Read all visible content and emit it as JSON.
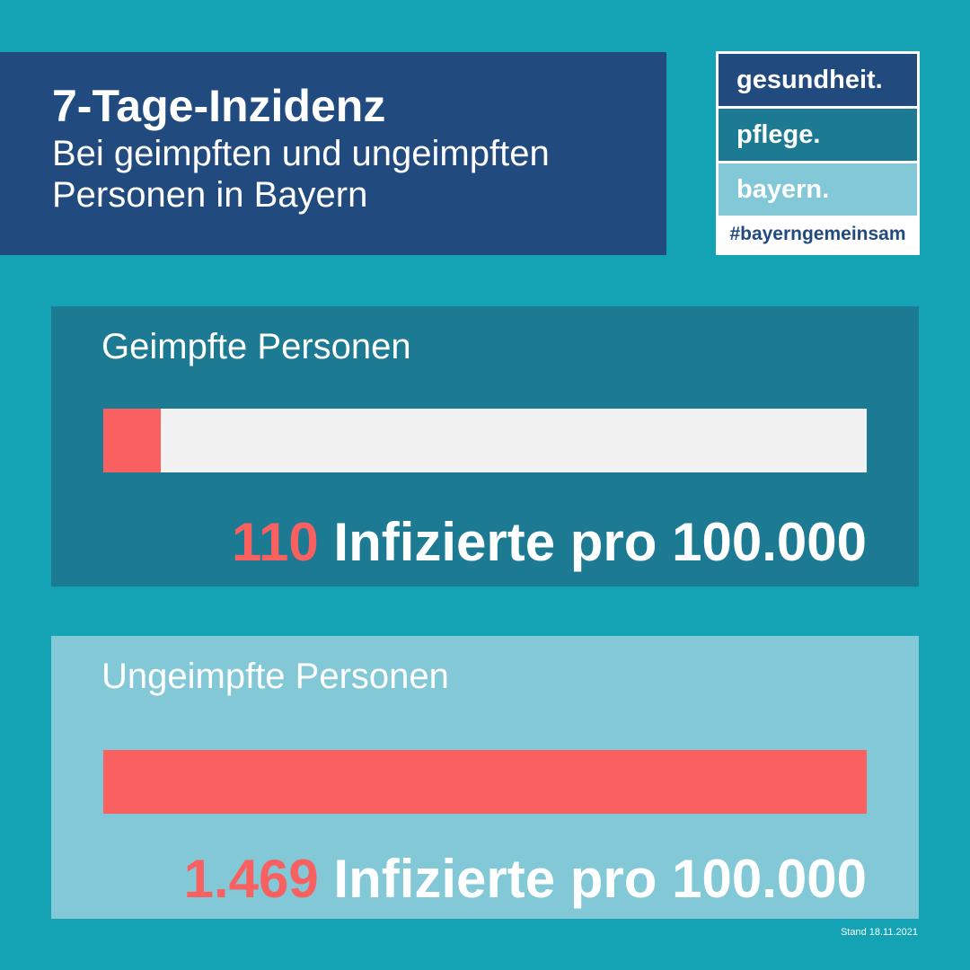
{
  "header": {
    "title": "7-Tage-Inzidenz",
    "subtitle_line1": "Bei geimpften und ungeimpften",
    "subtitle_line2": "Personen in Bayern"
  },
  "logo": {
    "line1": "gesundheit.",
    "line2": "pflege.",
    "line3": "bayern.",
    "hashtag": "#bayerngemeinsam"
  },
  "colors": {
    "background": "#14a3b5",
    "title_box": "#214a7f",
    "panel_vaccinated": "#1d7a93",
    "panel_unvaccinated": "#82c8d6",
    "bar_fill": "#f96060",
    "bar_track": "#f1f1f1"
  },
  "chart_data": {
    "type": "bar",
    "orientation": "horizontal",
    "categories": [
      "Geimpfte Personen",
      "Ungeimpfte Personen"
    ],
    "values": [
      110,
      1469
    ],
    "display_values": [
      "110",
      "1.469"
    ],
    "unit": "Infizierte pro 100.000",
    "xlim": [
      0,
      1469
    ]
  },
  "footer": {
    "stand": "Stand 18.11.2021"
  }
}
